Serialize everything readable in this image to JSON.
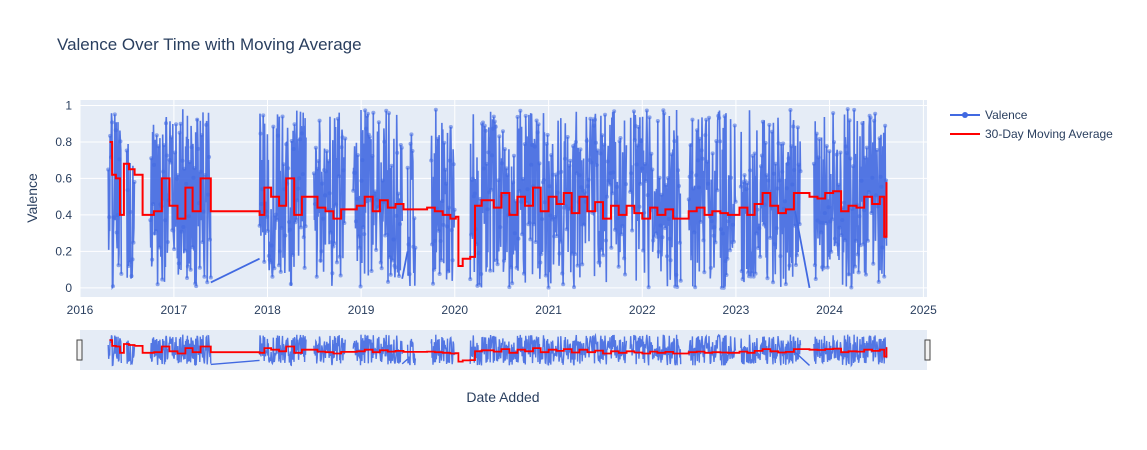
{
  "chart_data": {
    "type": "line",
    "title": "Valence Over Time with Moving Average",
    "xlabel": "Date Added",
    "ylabel": "Valence",
    "x_ticks": [
      "2016",
      "2017",
      "2018",
      "2019",
      "2020",
      "2021",
      "2022",
      "2023",
      "2024",
      "2025"
    ],
    "y_ticks": [
      "0",
      "0.2",
      "0.4",
      "0.6",
      "0.8",
      "1"
    ],
    "xlim": [
      "2016-01-01",
      "2025-01-15"
    ],
    "ylim": [
      -0.05,
      1.03
    ],
    "grid": true,
    "legend_position": "top-right",
    "range_slider": true,
    "series": [
      {
        "name": "Valence",
        "kind": "scatter-line",
        "color": "#4169e1",
        "segments": [
          {
            "start": "2016-04-20",
            "end": "2016-06-10"
          },
          {
            "start": "2016-07-01",
            "end": "2016-07-31"
          },
          {
            "start": "2016-10-01",
            "end": "2017-05-25"
          },
          {
            "start": "2017-12-01",
            "end": "2018-05-31"
          },
          {
            "start": "2018-07-01",
            "end": "2018-10-31"
          },
          {
            "start": "2018-12-01",
            "end": "2019-06-10"
          },
          {
            "start": "2019-07-01",
            "end": "2019-07-31"
          },
          {
            "start": "2019-10-01",
            "end": "2019-12-31"
          },
          {
            "start": "2020-03-01",
            "end": "2021-10-31"
          },
          {
            "start": "2021-11-15",
            "end": "2022-05-31"
          },
          {
            "start": "2022-07-01",
            "end": "2022-12-31"
          },
          {
            "start": "2023-01-20",
            "end": "2023-09-10"
          },
          {
            "start": "2023-11-01",
            "end": "2024-08-10"
          }
        ],
        "connectors": [
          {
            "from": [
              "2017-05-25",
              0.03
            ],
            "to": [
              "2017-12-01",
              0.16
            ]
          },
          {
            "from": [
              "2019-06-10",
              0.05
            ],
            "to": [
              "2019-07-01",
              0.2
            ]
          },
          {
            "from": [
              "2023-08-20",
              0.42
            ],
            "to": [
              "2023-10-15",
              0.0
            ]
          }
        ],
        "y_range": [
          0,
          0.98
        ]
      },
      {
        "name": "30-Day Moving Average",
        "kind": "line",
        "color": "#ff0000",
        "x": [
          "2016-04-25",
          "2016-05-05",
          "2016-05-20",
          "2016-06-05",
          "2016-06-20",
          "2016-07-10",
          "2016-08-01",
          "2016-09-01",
          "2016-10-15",
          "2016-11-15",
          "2016-12-15",
          "2017-01-15",
          "2017-02-15",
          "2017-03-15",
          "2017-04-15",
          "2017-05-25",
          "2017-12-01",
          "2017-12-20",
          "2018-01-15",
          "2018-02-15",
          "2018-03-15",
          "2018-04-15",
          "2018-05-15",
          "2018-07-15",
          "2018-08-15",
          "2018-09-15",
          "2018-10-15",
          "2018-12-15",
          "2019-01-15",
          "2019-02-15",
          "2019-03-15",
          "2019-04-15",
          "2019-05-15",
          "2019-06-15",
          "2019-07-15",
          "2019-09-15",
          "2019-10-15",
          "2019-11-15",
          "2019-12-15",
          "2020-01-05",
          "2020-01-15",
          "2020-02-01",
          "2020-03-01",
          "2020-03-20",
          "2020-04-15",
          "2020-06-01",
          "2020-07-01",
          "2020-08-01",
          "2020-09-01",
          "2020-10-01",
          "2020-11-01",
          "2020-12-01",
          "2021-01-01",
          "2021-02-01",
          "2021-03-01",
          "2021-04-01",
          "2021-05-01",
          "2021-06-01",
          "2021-07-01",
          "2021-08-01",
          "2021-09-01",
          "2021-10-01",
          "2021-11-01",
          "2021-12-01",
          "2022-01-01",
          "2022-02-01",
          "2022-03-01",
          "2022-04-01",
          "2022-05-01",
          "2022-07-01",
          "2022-08-01",
          "2022-09-01",
          "2022-10-01",
          "2022-11-01",
          "2022-12-01",
          "2023-01-15",
          "2023-02-15",
          "2023-03-15",
          "2023-04-15",
          "2023-05-15",
          "2023-06-15",
          "2023-07-15",
          "2023-08-15",
          "2023-10-15",
          "2023-11-15",
          "2023-12-15",
          "2024-01-15",
          "2024-02-15",
          "2024-03-15",
          "2024-04-15",
          "2024-05-15",
          "2024-06-15",
          "2024-07-15",
          "2024-08-01",
          "2024-08-10"
        ],
        "y": [
          0.8,
          0.62,
          0.6,
          0.4,
          0.68,
          0.65,
          0.62,
          0.4,
          0.42,
          0.6,
          0.45,
          0.38,
          0.55,
          0.42,
          0.6,
          0.42,
          0.4,
          0.55,
          0.5,
          0.45,
          0.6,
          0.4,
          0.5,
          0.44,
          0.42,
          0.38,
          0.43,
          0.45,
          0.5,
          0.42,
          0.48,
          0.44,
          0.46,
          0.43,
          0.43,
          0.44,
          0.42,
          0.4,
          0.38,
          0.39,
          0.12,
          0.16,
          0.17,
          0.45,
          0.48,
          0.44,
          0.52,
          0.4,
          0.5,
          0.45,
          0.55,
          0.42,
          0.5,
          0.46,
          0.52,
          0.41,
          0.5,
          0.42,
          0.47,
          0.38,
          0.45,
          0.4,
          0.45,
          0.41,
          0.38,
          0.44,
          0.4,
          0.43,
          0.38,
          0.42,
          0.44,
          0.4,
          0.42,
          0.41,
          0.4,
          0.44,
          0.4,
          0.46,
          0.52,
          0.45,
          0.41,
          0.43,
          0.52,
          0.5,
          0.49,
          0.52,
          0.53,
          0.42,
          0.45,
          0.44,
          0.5,
          0.46,
          0.5,
          0.28,
          0.58
        ]
      }
    ]
  }
}
